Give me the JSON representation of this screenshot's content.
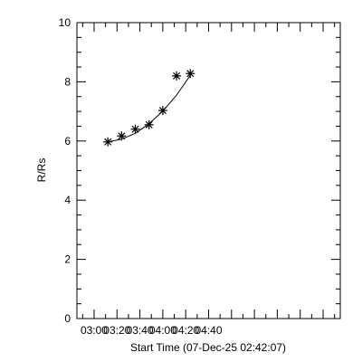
{
  "chart_data": {
    "type": "scatter",
    "xlabel": "Start Time (07-Dec-25 02:42:07)",
    "ylabel": "R/Rs",
    "xlim_minutes_of_day": [
      165,
      395
    ],
    "ylim": [
      0,
      10
    ],
    "x_ticks": [
      {
        "label": "03:00",
        "value": "03:00"
      },
      {
        "label": "03:20",
        "value": "03:20"
      },
      {
        "label": "03:40",
        "value": "03:40"
      },
      {
        "label": "04:00",
        "value": "04:00"
      },
      {
        "label": "04:20",
        "value": "04:20"
      },
      {
        "label": "04:40",
        "value": "04:40"
      }
    ],
    "y_ticks": [
      "0",
      "2",
      "4",
      "6",
      "8",
      "10"
    ],
    "grid": false,
    "series": [
      {
        "marker": "asterisk",
        "points": [
          {
            "x": "03:12",
            "y": 5.97
          },
          {
            "x": "03:24",
            "y": 6.17
          },
          {
            "x": "03:36",
            "y": 6.4
          },
          {
            "x": "03:48",
            "y": 6.55
          },
          {
            "x": "04:00",
            "y": 7.03
          },
          {
            "x": "04:12",
            "y": 8.2
          },
          {
            "x": "04:24",
            "y": 8.28
          }
        ]
      },
      {
        "type": "line",
        "style": "fit",
        "points": [
          {
            "x": "03:12",
            "y": 5.97
          },
          {
            "x": "03:24",
            "y": 6.06
          },
          {
            "x": "03:36",
            "y": 6.26
          },
          {
            "x": "03:48",
            "y": 6.58
          },
          {
            "x": "04:00",
            "y": 7.01
          },
          {
            "x": "04:12",
            "y": 7.55
          },
          {
            "x": "04:24",
            "y": 8.22
          }
        ]
      }
    ]
  }
}
